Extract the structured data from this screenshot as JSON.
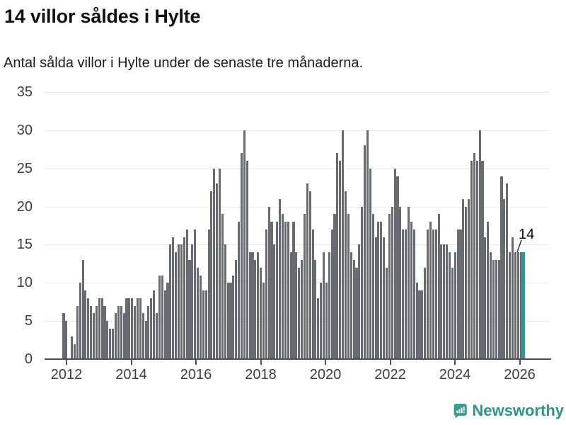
{
  "title": "14 villor såldes i Hylte",
  "subtitle": "Antal sålda villor i Hylte under de senaste tre månaderna.",
  "annotation": {
    "label": "14"
  },
  "branding": {
    "name": "Newsworthy",
    "icon": "newsworthy-speech-bubble-bars-icon"
  },
  "colors": {
    "bar": "#6a6a73",
    "highlight": "#17a3a1",
    "grid": "#e6e6e6",
    "axis": "#4f4f4f",
    "tick_text": "#3d3d3d",
    "title_text": "#111111",
    "logo": "#3a9c8d",
    "logo_text": "#2e9687",
    "background": "#ffffff"
  },
  "chart_data": {
    "type": "bar",
    "title": "14 villor såldes i Hylte",
    "subtitle": "Antal sålda villor i Hylte under de senaste tre månaderna.",
    "xlabel": "",
    "ylabel": "",
    "ylim": [
      0,
      35
    ],
    "y_ticks": [
      0,
      5,
      10,
      15,
      20,
      25,
      30,
      35
    ],
    "x_tick_labels": [
      "2012",
      "2014",
      "2016",
      "2018",
      "2020",
      "2022",
      "2024",
      "2026"
    ],
    "grid": "horizontal",
    "legend": "none",
    "frequency": "monthly",
    "start_year": 2012,
    "highlight_last": true,
    "last_value_label": "14",
    "values": [
      6,
      5,
      0,
      3,
      2,
      7,
      10,
      13,
      9,
      8,
      7,
      6,
      7,
      8,
      8,
      7,
      5,
      4,
      4,
      6,
      7,
      7,
      6,
      8,
      8,
      8,
      7,
      8,
      8,
      6,
      5,
      7,
      8,
      9,
      6,
      11,
      11,
      9,
      10,
      15,
      16,
      14,
      15,
      15,
      16,
      17,
      13,
      15,
      17,
      12,
      11,
      9,
      9,
      17,
      22,
      25,
      23,
      25,
      19,
      15,
      10,
      10,
      11,
      13,
      18,
      27,
      30,
      26,
      14,
      14,
      13,
      14,
      12,
      10,
      17,
      20,
      18,
      15,
      18,
      21,
      19,
      18,
      18,
      14,
      18,
      14,
      12,
      13,
      19,
      23,
      22,
      17,
      13,
      8,
      10,
      14,
      10,
      14,
      17,
      19,
      27,
      26,
      30,
      22,
      19,
      14,
      13,
      12,
      15,
      20,
      28,
      30,
      25,
      19,
      16,
      18,
      18,
      16,
      12,
      19,
      20,
      25,
      24,
      20,
      17,
      17,
      20,
      18,
      17,
      10,
      9,
      9,
      12,
      17,
      18,
      17,
      17,
      19,
      15,
      15,
      15,
      14,
      12,
      14,
      17,
      17,
      21,
      20,
      21,
      26,
      27,
      26,
      30,
      26,
      16,
      18,
      14,
      13,
      13,
      13,
      24,
      21,
      23,
      14,
      16,
      14,
      14,
      14,
      14
    ]
  }
}
